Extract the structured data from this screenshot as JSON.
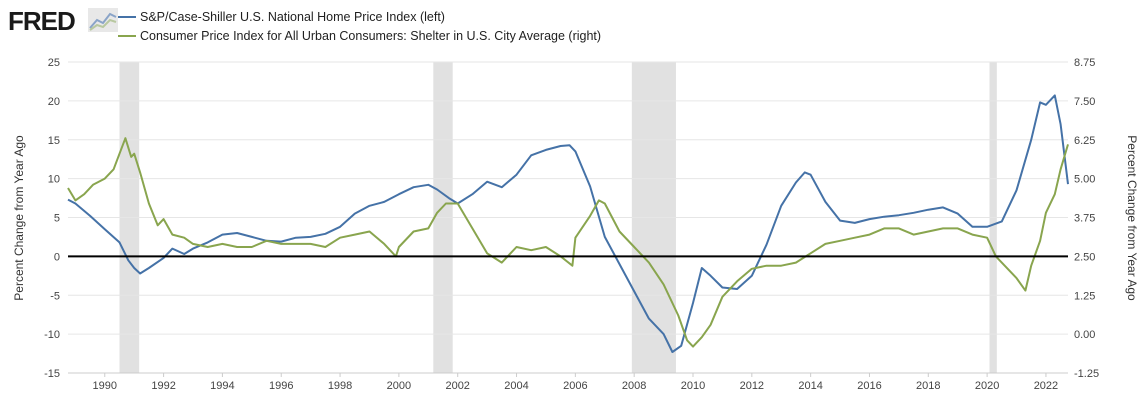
{
  "logo": {
    "text": "FRED"
  },
  "chart_data": {
    "type": "line",
    "title": "",
    "xlabel": "",
    "ylabel_left": "Percent Change from Year Ago",
    "ylabel_right": "Percent Change from Year Ago",
    "ylim_left": [
      -15,
      25
    ],
    "ylim_right": [
      -1.25,
      8.75
    ],
    "yticks_left": [
      "25",
      "20",
      "15",
      "10",
      "5",
      "0",
      "-5",
      "-10",
      "-15"
    ],
    "yticks_right": [
      "8.75",
      "7.50",
      "6.25",
      "5.00",
      "3.75",
      "2.50",
      "1.25",
      "0.00",
      "-1.25"
    ],
    "xlim": [
      1988.75,
      2022.75
    ],
    "xticks": [
      "1990",
      "1992",
      "1994",
      "1996",
      "1998",
      "2000",
      "2002",
      "2004",
      "2006",
      "2008",
      "2010",
      "2012",
      "2014",
      "2016",
      "2018",
      "2020",
      "2022"
    ],
    "recessions": [
      [
        1990.5,
        1991.17
      ],
      [
        2001.17,
        2001.83
      ],
      [
        2007.92,
        2009.42
      ],
      [
        2020.08,
        2020.33
      ]
    ],
    "series": [
      {
        "name": "S&P/Case-Shiller U.S. National Home Price Index (left)",
        "axis": "left",
        "color": "#4572a7",
        "x": [
          1988.75,
          1989.0,
          1989.5,
          1990.0,
          1990.5,
          1990.8,
          1991.0,
          1991.2,
          1991.5,
          1992.0,
          1992.3,
          1992.7,
          1993.0,
          1993.5,
          1994.0,
          1994.5,
          1995.0,
          1995.5,
          1996.0,
          1996.5,
          1997.0,
          1997.5,
          1998.0,
          1998.5,
          1999.0,
          1999.5,
          2000.0,
          2000.5,
          2001.0,
          2001.3,
          2001.7,
          2002.0,
          2002.5,
          2003.0,
          2003.5,
          2004.0,
          2004.5,
          2005.0,
          2005.5,
          2005.8,
          2006.0,
          2006.5,
          2007.0,
          2007.5,
          2008.0,
          2008.5,
          2009.0,
          2009.3,
          2009.6,
          2010.0,
          2010.3,
          2010.6,
          2011.0,
          2011.5,
          2012.0,
          2012.5,
          2013.0,
          2013.5,
          2013.8,
          2014.0,
          2014.5,
          2015.0,
          2015.5,
          2016.0,
          2016.5,
          2017.0,
          2017.5,
          2018.0,
          2018.5,
          2019.0,
          2019.5,
          2020.0,
          2020.5,
          2021.0,
          2021.5,
          2021.8,
          2022.0,
          2022.3,
          2022.5,
          2022.75
        ],
        "values": [
          7.3,
          6.8,
          5.2,
          3.5,
          1.8,
          -0.5,
          -1.5,
          -2.2,
          -1.5,
          -0.2,
          1.0,
          0.3,
          1.0,
          1.8,
          2.8,
          3.0,
          2.5,
          2.0,
          1.9,
          2.4,
          2.5,
          2.9,
          3.8,
          5.5,
          6.5,
          7.0,
          8.0,
          8.9,
          9.2,
          8.6,
          7.5,
          6.8,
          8.0,
          9.6,
          8.9,
          10.5,
          13.0,
          13.7,
          14.2,
          14.3,
          13.5,
          9.0,
          2.5,
          -1.0,
          -4.5,
          -8.0,
          -10.0,
          -12.3,
          -11.5,
          -6.0,
          -1.5,
          -2.5,
          -4.0,
          -4.2,
          -2.5,
          1.5,
          6.5,
          9.5,
          10.8,
          10.5,
          7.0,
          4.6,
          4.3,
          4.8,
          5.1,
          5.3,
          5.6,
          6.0,
          6.3,
          5.5,
          3.8,
          3.8,
          4.5,
          8.5,
          15.0,
          19.8,
          19.5,
          20.7,
          17.0,
          9.3
        ]
      },
      {
        "name": "Consumer Price Index for All Urban Consumers: Shelter in U.S. City Average (right)",
        "axis": "right",
        "color": "#89a54e",
        "x": [
          1988.75,
          1989.0,
          1989.3,
          1989.6,
          1990.0,
          1990.3,
          1990.5,
          1990.7,
          1990.9,
          1991.0,
          1991.2,
          1991.5,
          1991.8,
          1992.0,
          1992.3,
          1992.7,
          1993.0,
          1993.5,
          1994.0,
          1994.5,
          1995.0,
          1995.5,
          1996.0,
          1996.5,
          1997.0,
          1997.5,
          1998.0,
          1998.5,
          1999.0,
          1999.5,
          1999.9,
          2000.0,
          2000.5,
          2001.0,
          2001.3,
          2001.6,
          2002.0,
          2002.5,
          2003.0,
          2003.5,
          2004.0,
          2004.5,
          2005.0,
          2005.5,
          2005.9,
          2006.0,
          2006.5,
          2006.8,
          2007.0,
          2007.5,
          2008.0,
          2008.5,
          2009.0,
          2009.5,
          2009.8,
          2010.0,
          2010.3,
          2010.6,
          2011.0,
          2011.5,
          2012.0,
          2012.5,
          2013.0,
          2013.5,
          2014.0,
          2014.5,
          2015.0,
          2015.5,
          2016.0,
          2016.5,
          2017.0,
          2017.5,
          2018.0,
          2018.5,
          2019.0,
          2019.5,
          2020.0,
          2020.3,
          2020.7,
          2021.0,
          2021.3,
          2021.5,
          2021.8,
          2022.0,
          2022.3,
          2022.5,
          2022.75
        ],
        "values": [
          4.7,
          4.3,
          4.5,
          4.8,
          5.0,
          5.3,
          5.8,
          6.3,
          5.7,
          5.8,
          5.2,
          4.2,
          3.5,
          3.7,
          3.2,
          3.1,
          2.9,
          2.8,
          2.9,
          2.8,
          2.8,
          3.0,
          2.9,
          2.9,
          2.9,
          2.8,
          3.1,
          3.2,
          3.3,
          2.9,
          2.5,
          2.8,
          3.3,
          3.4,
          3.9,
          4.2,
          4.2,
          3.4,
          2.6,
          2.3,
          2.8,
          2.7,
          2.8,
          2.5,
          2.2,
          3.1,
          3.8,
          4.3,
          4.2,
          3.3,
          2.8,
          2.3,
          1.6,
          0.6,
          -0.2,
          -0.4,
          -0.1,
          0.3,
          1.2,
          1.7,
          2.1,
          2.2,
          2.2,
          2.3,
          2.6,
          2.9,
          3.0,
          3.1,
          3.2,
          3.4,
          3.4,
          3.2,
          3.3,
          3.4,
          3.4,
          3.2,
          3.1,
          2.5,
          2.1,
          1.8,
          1.4,
          2.2,
          3.0,
          3.9,
          4.5,
          5.3,
          6.1
        ]
      }
    ]
  }
}
